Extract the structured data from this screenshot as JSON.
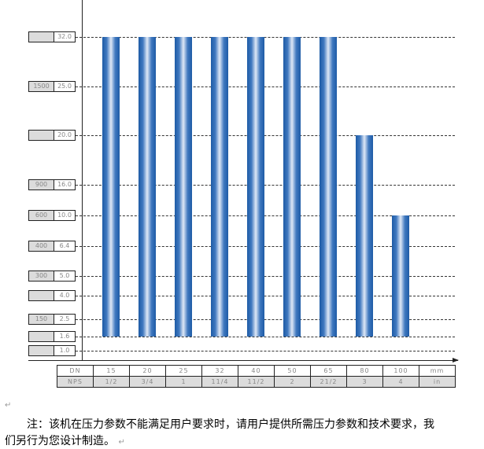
{
  "chart_data": {
    "type": "bar",
    "categories": [
      "15",
      "20",
      "25",
      "32",
      "40",
      "50",
      "65",
      "80",
      "100"
    ],
    "values": [
      32.0,
      32.0,
      32.0,
      32.0,
      32.0,
      32.0,
      32.0,
      20.0,
      10.0
    ],
    "baseline": 1.6,
    "y_levels": [
      {
        "pn": "32.0",
        "class": ""
      },
      {
        "pn": "25.0",
        "class": "1500"
      },
      {
        "pn": "20.0",
        "class": ""
      },
      {
        "pn": "16.0",
        "class": "900"
      },
      {
        "pn": "10.0",
        "class": "600"
      },
      {
        "pn": "6.4",
        "class": "400"
      },
      {
        "pn": "5.0",
        "class": "300"
      },
      {
        "pn": "4.0",
        "class": ""
      },
      {
        "pn": "2.5",
        "class": "150"
      },
      {
        "pn": "1.6",
        "class": ""
      },
      {
        "pn": "1.0",
        "class": ""
      }
    ],
    "grid": true,
    "bar_color": "#1e5ba6",
    "table": {
      "row1": [
        "DN",
        "15",
        "20",
        "25",
        "32",
        "40",
        "50",
        "65",
        "80",
        "100",
        "mm"
      ],
      "row2": [
        "NPS",
        "1/2",
        "3/4",
        "1",
        "11/4",
        "11/2",
        "2",
        "21/2",
        "3",
        "4",
        "in"
      ]
    }
  },
  "note": {
    "line1": "注：该机在压力参数不能满足用户要求时，请用户提供所需压力参数和技术要求，我",
    "line2": "们另行为您设计制造。",
    "mark": "↵"
  }
}
